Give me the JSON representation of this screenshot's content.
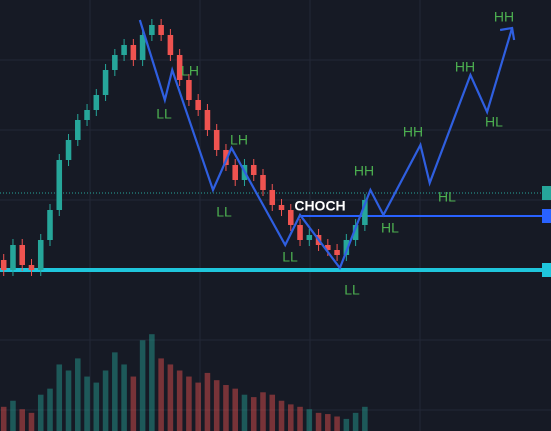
{
  "chart_data": {
    "type": "candlestick",
    "x": [
      0,
      1,
      2,
      3,
      4,
      5,
      6,
      7,
      8,
      9,
      10,
      11,
      12,
      13,
      14,
      15,
      16,
      17,
      18,
      19,
      20,
      21,
      22,
      23,
      24,
      25,
      26,
      27,
      28,
      29,
      30,
      31,
      32,
      33,
      34,
      35,
      36,
      37,
      38,
      39
    ],
    "open": [
      171,
      161,
      186,
      166,
      161,
      191,
      221,
      271,
      291,
      311,
      321,
      336,
      361,
      376,
      386,
      371,
      396,
      406,
      396,
      376,
      351,
      331,
      321,
      301,
      281,
      266,
      251,
      266,
      256,
      241,
      226,
      221,
      206,
      191,
      196,
      186,
      181,
      176,
      191,
      206
    ],
    "high": [
      177,
      192,
      192,
      172,
      197,
      227,
      277,
      297,
      317,
      327,
      342,
      367,
      382,
      392,
      392,
      402,
      412,
      412,
      402,
      382,
      357,
      337,
      327,
      307,
      287,
      272,
      272,
      272,
      262,
      247,
      232,
      227,
      212,
      202,
      202,
      192,
      187,
      197,
      212,
      237
    ],
    "low": [
      155,
      155,
      160,
      155,
      155,
      185,
      215,
      265,
      285,
      305,
      315,
      330,
      355,
      370,
      365,
      365,
      390,
      390,
      370,
      345,
      325,
      315,
      295,
      275,
      260,
      245,
      245,
      250,
      235,
      220,
      215,
      200,
      185,
      185,
      180,
      175,
      170,
      170,
      185,
      200
    ],
    "close": [
      161,
      186,
      166,
      161,
      191,
      221,
      271,
      291,
      311,
      321,
      336,
      361,
      376,
      386,
      371,
      396,
      406,
      396,
      376,
      351,
      331,
      321,
      301,
      281,
      266,
      251,
      266,
      256,
      241,
      226,
      221,
      206,
      191,
      196,
      186,
      181,
      176,
      191,
      206,
      231
    ],
    "volume": [
      20,
      25,
      18,
      15,
      30,
      35,
      55,
      50,
      60,
      45,
      40,
      50,
      65,
      55,
      45,
      75,
      80,
      60,
      55,
      50,
      45,
      40,
      48,
      42,
      38,
      35,
      30,
      28,
      32,
      30,
      25,
      22,
      20,
      18,
      15,
      14,
      12,
      10,
      15,
      20
    ],
    "up_color": "#26a69a",
    "down_color": "#ef5350",
    "xlim": [
      -0.4,
      59.1
    ],
    "ylim": [
      0,
      431
    ],
    "volume_lim": [
      0,
      100
    ],
    "zigzag": {
      "color": "#2f5fe0",
      "x": [
        14.7,
        17.4,
        18.2,
        22.6,
        24.6,
        30.4,
        32,
        36.3,
        39.6,
        41,
        45,
        46,
        50.4,
        52.2,
        54.9
      ],
      "values": [
        411,
        331,
        361,
        241,
        283,
        186,
        216,
        163,
        241,
        216,
        286,
        248,
        356,
        319,
        403
      ]
    },
    "levels": [
      {
        "value": 161,
        "color": "#1fc6dc"
      },
      {
        "value": 215,
        "color": "#2962ff"
      }
    ],
    "current_price": 238,
    "annotations": [
      "LH",
      "LL",
      "LH",
      "LL",
      "CHOCH",
      "HH",
      "HL",
      "LL",
      "LL",
      "HH",
      "HL",
      "HH",
      "HL",
      "HH"
    ]
  }
}
